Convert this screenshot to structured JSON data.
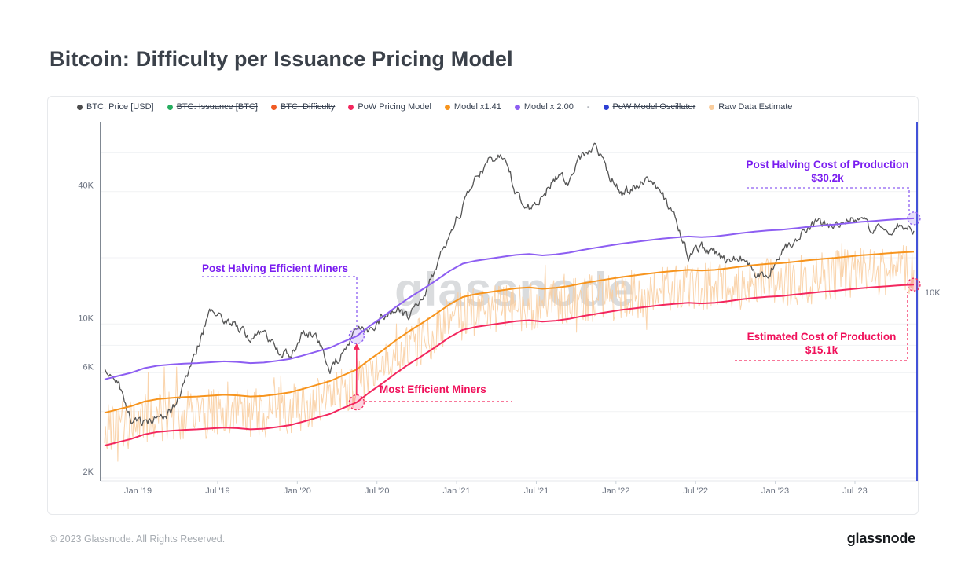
{
  "header": {
    "title": "Bitcoin: Difficulty per Issuance Pricing Model"
  },
  "watermark": "glassnode",
  "footer": {
    "copyright": "© 2023 Glassnode. All Rights Reserved.",
    "brand": "glassnode"
  },
  "legend": {
    "separator": "-",
    "items": [
      {
        "label": "BTC: Price [USD]",
        "color": "#4d4d4d",
        "struck": false
      },
      {
        "label": "BTC: Issuance [BTC]",
        "color": "#27ae60",
        "struck": true
      },
      {
        "label": "BTC: Difficulty",
        "color": "#f05b24",
        "struck": true
      },
      {
        "label": "PoW Pricing Model",
        "color": "#f3275e",
        "struck": false
      },
      {
        "label": "Model x1.41",
        "color": "#f7941d",
        "struck": false
      },
      {
        "label": "Model x 2.00",
        "color": "#8d5ef2",
        "struck": false
      },
      {
        "label": "PoW Model Oscillator",
        "color": "#2d3fd4",
        "struck": true
      },
      {
        "label": "Raw Data Estimate",
        "color": "#f9cd9d",
        "struck": false
      }
    ]
  },
  "annotations": {
    "post_halving_cost": {
      "line1": "Post Halving Cost of Production",
      "line2": "$30.2k",
      "color": "#7a1df0"
    },
    "post_halving_miners": {
      "text": "Post Halving Efficient Miners",
      "color": "#7a1df0"
    },
    "most_efficient": {
      "text": "Most Efficient Miners",
      "color": "#f0105a"
    },
    "estimated_cost": {
      "line1": "Estimated Cost of Production",
      "line2": "$15.1k",
      "color": "#f0105a"
    }
  },
  "chart_data": {
    "type": "line",
    "title": "Bitcoin: Difficulty per Issuance Pricing Model",
    "y_scale": "log",
    "grid": true,
    "legend_position": "top",
    "y_axis_left_labels": [
      {
        "text": "40K",
        "value": 40000
      },
      {
        "text": "10K",
        "value": 10000
      },
      {
        "text": "6K",
        "value": 6000
      },
      {
        "text": "2K",
        "value": 2000
      }
    ],
    "y_axis_right_labels": [
      {
        "text": "10K"
      }
    ],
    "gridline_values": [
      2000,
      4000,
      6000,
      8000,
      10000,
      20000,
      40000,
      60000
    ],
    "ylim": [
      2000,
      78000
    ],
    "x_range_years": [
      2018.79,
      2023.87
    ],
    "x_ticks": [
      {
        "label": "Jan '19",
        "year": 2019.0
      },
      {
        "label": "Jul '19",
        "year": 2019.5
      },
      {
        "label": "Jan '20",
        "year": 2020.0
      },
      {
        "label": "Jul '20",
        "year": 2020.5
      },
      {
        "label": "Jan '21",
        "year": 2021.0
      },
      {
        "label": "Jul '21",
        "year": 2021.5
      },
      {
        "label": "Jan '22",
        "year": 2022.0
      },
      {
        "label": "Jul '22",
        "year": 2022.5
      },
      {
        "label": "Jan '23",
        "year": 2023.0
      },
      {
        "label": "Jul '23",
        "year": 2023.5
      }
    ],
    "series": [
      {
        "name": "BTC: Price [USD]",
        "color": "#555555",
        "width": 1.3,
        "style": "noisy-fine",
        "values": [
          6500,
          5600,
          3600,
          3500,
          3800,
          4000,
          5200,
          7800,
          11500,
          10500,
          9900,
          8600,
          9000,
          7600,
          7200,
          9200,
          8800,
          6000,
          7600,
          9200,
          9300,
          10800,
          11700,
          10700,
          13000,
          18000,
          26000,
          34000,
          46000,
          55000,
          60000,
          40000,
          34000,
          38000,
          47000,
          44000,
          58000,
          63000,
          48000,
          39000,
          42000,
          45000,
          39000,
          30000,
          20500,
          22500,
          21000,
          19300,
          20000,
          16800,
          16700,
          21500,
          23500,
          27500,
          29000,
          27000,
          30000,
          29500,
          27000,
          26500,
          28000,
          26500
        ]
      },
      {
        "name": "PoW Pricing Model",
        "color": "#f3275e",
        "width": 2,
        "values": [
          2800,
          2900,
          3000,
          3150,
          3230,
          3270,
          3300,
          3320,
          3350,
          3380,
          3360,
          3320,
          3340,
          3400,
          3470,
          3600,
          3750,
          3900,
          4150,
          4400,
          4900,
          5400,
          6000,
          6600,
          7200,
          7900,
          8700,
          9400,
          9700,
          9900,
          10100,
          10300,
          10400,
          10250,
          10350,
          10550,
          10850,
          11100,
          11350,
          11600,
          11800,
          12000,
          12200,
          12350,
          12500,
          12400,
          12500,
          12700,
          12950,
          13150,
          13300,
          13400,
          13600,
          13800,
          14000,
          14150,
          14350,
          14550,
          14700,
          14850,
          15000,
          15100
        ]
      },
      {
        "name": "Model x1.41",
        "color": "#f7941d",
        "width": 2,
        "multiplier_of": "PoW Pricing Model",
        "multiplier": 1.41
      },
      {
        "name": "Model x 2.00",
        "color": "#8d5ef2",
        "width": 2,
        "multiplier_of": "PoW Pricing Model",
        "multiplier": 2.0
      },
      {
        "name": "Raw Data Estimate",
        "color": "#f9cd9d",
        "width": 1,
        "opacity": 0.85,
        "style": "noisy-heavy",
        "multiplier_of": "PoW Pricing Model",
        "multiplier": 1.17
      }
    ],
    "draw_order": [
      "Raw Data Estimate",
      "BTC: Price [USD]",
      "Model x1.41",
      "PoW Pricing Model",
      "Model x 2.00"
    ],
    "halving_marker_index": 19,
    "end_marker_values": {
      "model_x2": 30200,
      "pow": 15100
    },
    "marker_colors": {
      "purple": "#8d5ef2",
      "pink": "#f3275e"
    },
    "today_line_color": "#2d3fd4"
  }
}
